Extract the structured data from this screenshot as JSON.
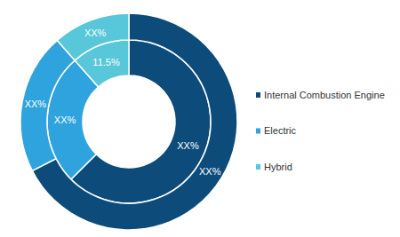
{
  "chart_data": {
    "type": "donut",
    "categories": [
      "Internal Combustion Engine",
      "Electric",
      "Hybrid"
    ],
    "colors": [
      "#0d4c7a",
      "#2fa3de",
      "#58c7d9"
    ],
    "series": [
      {
        "values": [
          62.5,
          26,
          11.5
        ],
        "value_labels": [
          "XX%",
          "XX%",
          "11.5%"
        ]
      },
      {
        "values": [
          67.5,
          21,
          11.5
        ],
        "value_labels": [
          "XX%",
          "XX%",
          "XX%"
        ]
      }
    ],
    "data_labels": true,
    "legend": "right"
  }
}
